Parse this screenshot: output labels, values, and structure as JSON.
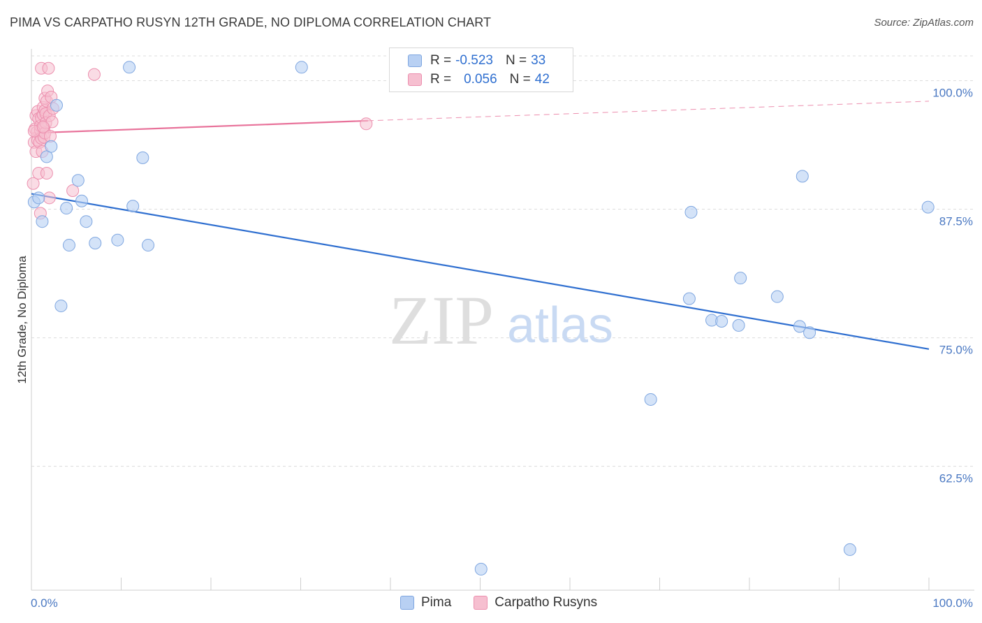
{
  "title": "PIMA VS CARPATHO RUSYN 12TH GRADE, NO DIPLOMA CORRELATION CHART",
  "source": "Source: ZipAtlas.com",
  "watermark": {
    "zip": "ZIP",
    "atlas": "atlas"
  },
  "legend": {
    "pima": {
      "r_label": "R =",
      "r_value": "-0.523",
      "n_label": "N =",
      "n_value": "33"
    },
    "carpatho": {
      "r_label": "R =",
      "r_value": "0.056",
      "n_label": "N =",
      "n_value": "42"
    }
  },
  "colors": {
    "pima_fill": "#b8d0f3",
    "pima_stroke": "#7ea6e0",
    "pima_line": "#2f6fd0",
    "carpatho_fill": "#f6bfd0",
    "carpatho_stroke": "#ec8fae",
    "carpatho_line": "#e8729a",
    "grid": "#dcdcdc",
    "tick": "#4a78c2"
  },
  "chart_data": {
    "type": "scatter",
    "title": "PIMA VS CARPATHO RUSYN 12TH GRADE, NO DIPLOMA CORRELATION CHART",
    "xlabel": "",
    "ylabel": "12th Grade, No Diploma",
    "xlim": [
      0,
      100
    ],
    "ylim": [
      51,
      102
    ],
    "x_ticks": [
      "0.0%",
      "100.0%"
    ],
    "y_ticks": [
      {
        "v": 100,
        "label": "100.0%"
      },
      {
        "v": 87.5,
        "label": "87.5%"
      },
      {
        "v": 75,
        "label": "75.0%"
      },
      {
        "v": 62.5,
        "label": "62.5%"
      }
    ],
    "grid": true,
    "legend_position": "bottom",
    "series": [
      {
        "name": "Pima",
        "points": [
          [
            0.3,
            88.2
          ],
          [
            0.8,
            88.6
          ],
          [
            1.2,
            86.3
          ],
          [
            1.7,
            92.6
          ],
          [
            2.2,
            93.6
          ],
          [
            2.8,
            97.6
          ],
          [
            3.3,
            78.1
          ],
          [
            3.9,
            87.6
          ],
          [
            4.2,
            84.0
          ],
          [
            5.2,
            90.3
          ],
          [
            5.6,
            88.3
          ],
          [
            6.1,
            86.3
          ],
          [
            7.1,
            84.2
          ],
          [
            9.6,
            84.5
          ],
          [
            10.9,
            101.3
          ],
          [
            11.3,
            87.8
          ],
          [
            12.4,
            92.5
          ],
          [
            13.0,
            84.0
          ],
          [
            30.1,
            101.3
          ],
          [
            50.1,
            52.5
          ],
          [
            69.0,
            69.0
          ],
          [
            73.3,
            78.8
          ],
          [
            73.5,
            87.2
          ],
          [
            75.8,
            76.7
          ],
          [
            76.9,
            76.6
          ],
          [
            78.8,
            76.2
          ],
          [
            79.0,
            80.8
          ],
          [
            83.1,
            79.0
          ],
          [
            85.6,
            76.1
          ],
          [
            85.9,
            90.7
          ],
          [
            86.7,
            75.5
          ],
          [
            91.2,
            54.4
          ],
          [
            99.9,
            87.7
          ]
        ],
        "trend": [
          [
            0,
            89.0
          ],
          [
            100,
            73.9
          ]
        ]
      },
      {
        "name": "Carpatho Rusyns",
        "points": [
          [
            0.2,
            90.0
          ],
          [
            0.3,
            94.0
          ],
          [
            0.4,
            95.3
          ],
          [
            0.5,
            93.1
          ],
          [
            0.5,
            96.6
          ],
          [
            0.6,
            95.0
          ],
          [
            0.7,
            94.2
          ],
          [
            0.7,
            97.0
          ],
          [
            0.8,
            91.0
          ],
          [
            0.8,
            96.3
          ],
          [
            0.9,
            94.0
          ],
          [
            1.0,
            87.1
          ],
          [
            1.0,
            95.2
          ],
          [
            1.0,
            95.6
          ],
          [
            1.1,
            96.4
          ],
          [
            1.1,
            94.4
          ],
          [
            1.1,
            101.2
          ],
          [
            1.2,
            93.1
          ],
          [
            1.3,
            96.7
          ],
          [
            1.3,
            97.4
          ],
          [
            1.4,
            95.4
          ],
          [
            1.4,
            94.5
          ],
          [
            1.5,
            98.3
          ],
          [
            1.5,
            94.9
          ],
          [
            1.5,
            97.1
          ],
          [
            1.6,
            96.8
          ],
          [
            1.6,
            95.9
          ],
          [
            1.7,
            98.0
          ],
          [
            1.7,
            91.0
          ],
          [
            1.8,
            99.0
          ],
          [
            1.9,
            101.2
          ],
          [
            2.0,
            96.6
          ],
          [
            2.0,
            88.6
          ],
          [
            2.1,
            94.6
          ],
          [
            2.2,
            98.4
          ],
          [
            2.3,
            96.0
          ],
          [
            2.4,
            97.3
          ],
          [
            4.6,
            89.3
          ],
          [
            7.0,
            100.6
          ],
          [
            37.3,
            95.8
          ],
          [
            0.3,
            95.1
          ],
          [
            1.3,
            95.5
          ]
        ],
        "trend": [
          [
            0,
            94.9
          ],
          [
            37.5,
            96.1
          ]
        ],
        "trend_extension": [
          [
            37.5,
            96.1
          ],
          [
            100,
            98.0
          ]
        ]
      }
    ]
  },
  "bottom_legend": [
    {
      "label": "Pima"
    },
    {
      "label": "Carpatho Rusyns"
    }
  ]
}
